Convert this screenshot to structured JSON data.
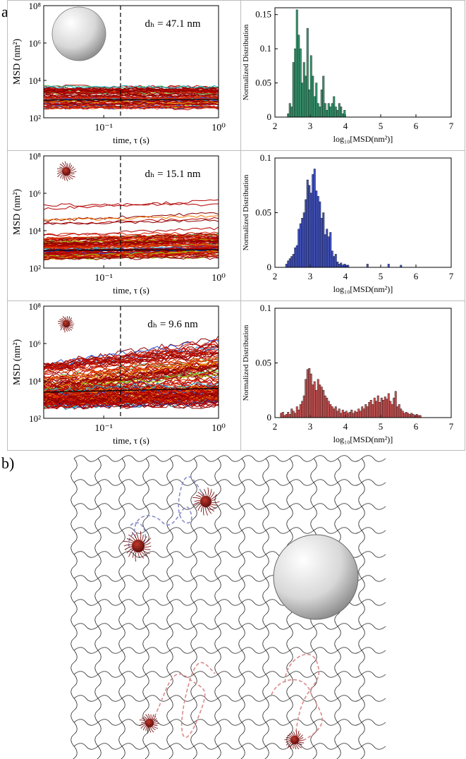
{
  "panel_a": {
    "label": "a)",
    "rows": [
      {
        "msd": {
          "ylabel": "MSD (nm²)",
          "xlabel": "time, τ (s)",
          "ytick_labels": [
            "10²",
            "10⁴",
            "10⁶",
            "10⁸"
          ],
          "xtick_labels": [
            "10⁻¹",
            "10⁰"
          ],
          "annotation": "dₕ = 47.1 nm",
          "particle": "large-sphere-icon"
        },
        "hist": {
          "ylabel": "Normalized Distribution",
          "xlabel": "log₁₀[MSD(nm²)]",
          "ytick_labels": [
            "0",
            "0.05",
            "0.1",
            "0.15"
          ],
          "xtick_labels": [
            "2",
            "3",
            "4",
            "5",
            "6",
            "7"
          ],
          "color": "#3a9a72"
        }
      },
      {
        "msd": {
          "ylabel": "MSD (nm²)",
          "xlabel": "time, τ (s)",
          "ytick_labels": [
            "10²",
            "10⁴",
            "10⁶",
            "10⁸"
          ],
          "xtick_labels": [
            "10⁻¹",
            "10⁰"
          ],
          "annotation": "dₕ = 15.1 nm",
          "particle": "hairy-nanoparticle-icon"
        },
        "hist": {
          "ylabel": "Normalized Distribution",
          "xlabel": "log₁₀[MSD(nm²)]",
          "ytick_labels": [
            "0",
            "0.05",
            "0.1"
          ],
          "xtick_labels": [
            "2",
            "3",
            "4",
            "5",
            "6",
            "7"
          ],
          "color": "#4455c4"
        }
      },
      {
        "msd": {
          "ylabel": "MSD (nm²)",
          "xlabel": "time, τ (s)",
          "ytick_labels": [
            "10²",
            "10⁴",
            "10⁶",
            "10⁸"
          ],
          "xtick_labels": [
            "10⁻¹",
            "10⁰"
          ],
          "annotation": "dₕ = 9.6 nm",
          "particle": "hairy-nanoparticle-icon"
        },
        "hist": {
          "ylabel": "Normalized Distribution",
          "xlabel": "log₁₀[MSD(nm²)]",
          "ytick_labels": [
            "0",
            "0.05",
            "0.1"
          ],
          "xtick_labels": [
            "2",
            "3",
            "4",
            "5",
            "6",
            "7"
          ],
          "color": "#cc5555"
        }
      }
    ]
  },
  "panel_b": {
    "label": "b)"
  },
  "chart_data": [
    {
      "type": "line",
      "scale": "log-log",
      "xlim": [
        0.03,
        1
      ],
      "ylim": [
        100,
        100000000
      ],
      "dashed_vline_x": 0.14,
      "description_band": [
        300,
        6000
      ]
    },
    {
      "type": "bar",
      "xlim": [
        2,
        7
      ],
      "ylim": [
        0,
        0.16
      ],
      "bin_width": 0.05,
      "x_start": 2.35,
      "values": [
        0.005,
        0.02,
        0.015,
        0.08,
        0.1,
        0.157,
        0.12,
        0.1,
        0.05,
        0.08,
        0.06,
        0.13,
        0.04,
        0.09,
        0.06,
        0.03,
        0.05,
        0.02,
        0.015,
        0.04,
        0.06,
        0.02,
        0.01,
        0.02,
        0.015,
        0.02,
        0.03,
        0.015,
        0.01,
        0.02,
        0.015,
        0.005,
        0.01
      ]
    },
    {
      "type": "bar",
      "xlim": [
        2,
        7
      ],
      "ylim": [
        0,
        0.1
      ],
      "bin_width": 0.05,
      "x_start": 2.3,
      "values": [
        0.003,
        0.006,
        0.008,
        0.01,
        0.012,
        0.018,
        0.02,
        0.035,
        0.04,
        0.045,
        0.05,
        0.062,
        0.08,
        0.075,
        0.068,
        0.085,
        0.09,
        0.07,
        0.065,
        0.06,
        0.045,
        0.05,
        0.03,
        0.035,
        0.028,
        0.032,
        0.015,
        0.01,
        0.012,
        0.005,
        0.003,
        0.004,
        0.002,
        0.003,
        0.002,
        0.002
      ],
      "outliers": [
        [
          4.6,
          0.003
        ],
        [
          5.2,
          0.003
        ],
        [
          5.55,
          0.002
        ],
        [
          3.9,
          0.002
        ]
      ]
    },
    {
      "type": "bar",
      "xlim": [
        2,
        7
      ],
      "ylim": [
        0,
        0.1
      ],
      "bin_width": 0.05,
      "x_start": 2.15,
      "values": [
        0.004,
        0.005,
        0.002,
        0.003,
        0.005,
        0.003,
        0.008,
        0.006,
        0.004,
        0.01,
        0.007,
        0.012,
        0.015,
        0.02,
        0.035,
        0.044,
        0.045,
        0.04,
        0.03,
        0.033,
        0.025,
        0.035,
        0.03,
        0.028,
        0.025,
        0.02,
        0.018,
        0.015,
        0.012,
        0.01,
        0.008,
        0.01,
        0.006,
        0.008,
        0.004,
        0.007,
        0.005,
        0.006,
        0.004,
        0.005,
        0.007,
        0.004,
        0.006,
        0.005,
        0.008,
        0.006,
        0.01,
        0.008,
        0.012,
        0.01,
        0.014,
        0.016,
        0.012,
        0.018,
        0.015,
        0.02,
        0.014,
        0.018,
        0.016,
        0.019,
        0.017,
        0.022,
        0.015,
        0.012,
        0.018,
        0.024,
        0.01,
        0.012,
        0.008,
        0.006,
        0.004,
        0.005,
        0.004,
        0.003,
        0.004,
        0.003,
        0.002,
        0.003,
        0.002,
        0.002
      ]
    }
  ]
}
